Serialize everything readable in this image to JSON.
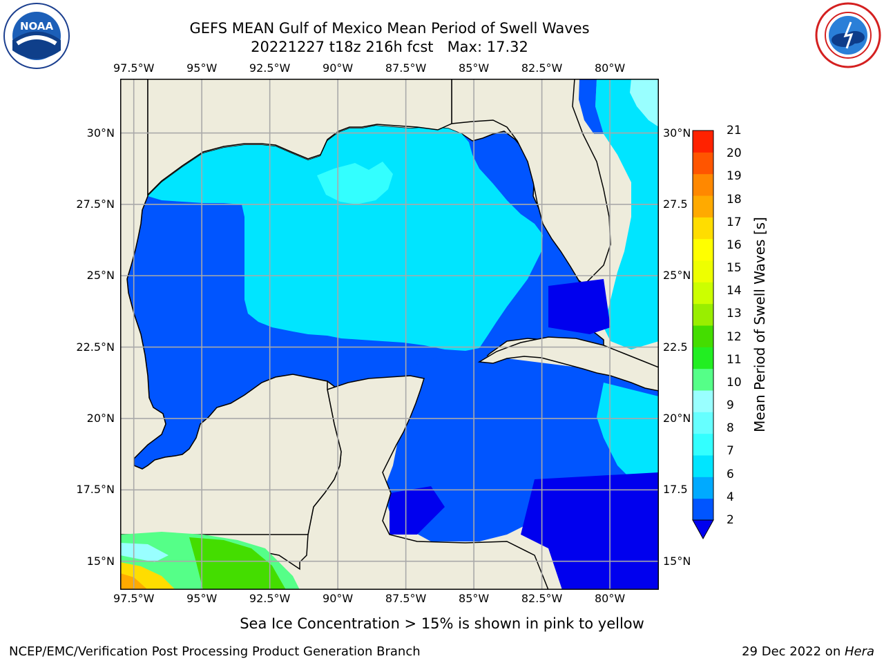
{
  "title_line1": "GEFS MEAN Gulf of Mexico Mean Period of Swell Waves",
  "title_line2": "20221227 t18z 216h fcst   Max: 17.32",
  "logos": {
    "left": "NOAA",
    "right": "National Weather Service"
  },
  "map": {
    "lon_ticks": [
      "97.5°W",
      "95°W",
      "92.5°W",
      "90°W",
      "87.5°W",
      "85°W",
      "82.5°W",
      "80°W"
    ],
    "lat_ticks_left": [
      "30°N",
      "27.5°N",
      "25°N",
      "22.5°N",
      "20°N",
      "17.5°N",
      "15°N"
    ],
    "lat_ticks_right": [
      "30°N",
      "27.5",
      "25°N",
      "22.5",
      "20°N",
      "17.5",
      "15°N"
    ],
    "lon_range": [
      -98,
      -78.2
    ],
    "lat_range": [
      14,
      31.9
    ],
    "land_color": "#eeecdc",
    "grid": true
  },
  "colorbar": {
    "label": "Mean Period of Swell Waves [s]",
    "ticks": [
      "21",
      "20",
      "19",
      "18",
      "17",
      "16",
      "15",
      "14",
      "13",
      "12",
      "11",
      "10",
      "9",
      "8",
      "7",
      "6",
      "4",
      "2"
    ],
    "levels": [
      2,
      4,
      6,
      7,
      8,
      9,
      10,
      11,
      12,
      13,
      14,
      15,
      16,
      17,
      18,
      19,
      20,
      21
    ],
    "colors": [
      "#0055ff",
      "#00aaff",
      "#00e5ff",
      "#33ffff",
      "#66ffff",
      "#99ffff",
      "#55ff88",
      "#22ee22",
      "#44dd00",
      "#99ee00",
      "#ccff00",
      "#eeff00",
      "#ffff00",
      "#ffdd00",
      "#ffaa00",
      "#ff8800",
      "#ff5500",
      "#ff2200"
    ],
    "extend_below_color": "#0000ee"
  },
  "footer": {
    "note": "Sea Ice Concentration > 15% is shown in pink to yellow",
    "left": "NCEP/EMC/Verification Post Processing Product Generation Branch",
    "right_prefix": "29 Dec 2022 on ",
    "right_machine": "Hera"
  }
}
